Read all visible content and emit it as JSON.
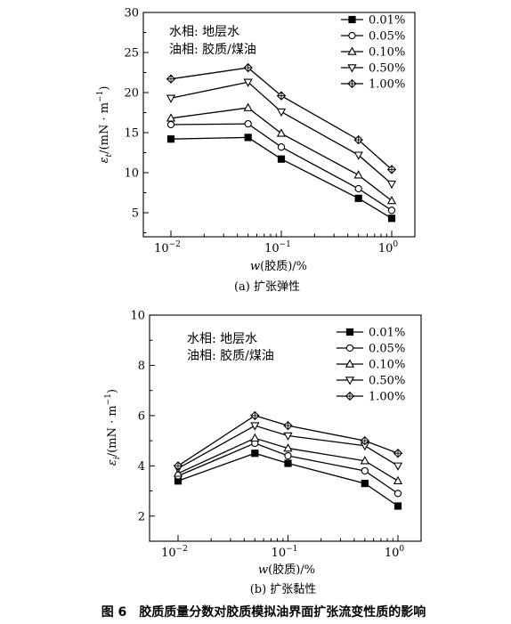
{
  "figure_caption": "图 6　胶质质量分数对胶质模拟油界面扩张流变性质的影响",
  "chart_data": [
    {
      "type": "line",
      "subcaption": "(a) 扩张弹性",
      "xlabel": "w(胶质)/%",
      "ylabel": "ε_t/(mN·m⁻¹)",
      "x_scale": "log",
      "x": [
        0.01,
        0.05,
        0.1,
        0.5,
        1.0
      ],
      "xticks": [
        {
          "value": 0.01,
          "base": "10",
          "exp": "−2"
        },
        {
          "value": 0.1,
          "base": "10",
          "exp": "−1"
        },
        {
          "value": 1,
          "base": "10",
          "exp": "0"
        }
      ],
      "ylim": [
        2,
        30
      ],
      "yticks": [
        "5",
        "10",
        "15",
        "20",
        "25",
        "30"
      ],
      "grid": false,
      "legend_position": "top-right",
      "notes": [
        "水相: 地层水",
        "油相: 胶质/煤油"
      ],
      "series": [
        {
          "name": "0.01%",
          "marker": "square-filled",
          "values": [
            14.2,
            14.4,
            11.7,
            6.8,
            4.3
          ]
        },
        {
          "name": "0.05%",
          "marker": "circle-open",
          "values": [
            16.0,
            16.1,
            13.2,
            8.0,
            5.3
          ]
        },
        {
          "name": "0.10%",
          "marker": "triangle-up-open",
          "values": [
            16.8,
            18.1,
            14.9,
            9.7,
            6.5
          ]
        },
        {
          "name": "0.50%",
          "marker": "triangle-down-open",
          "values": [
            19.3,
            21.3,
            17.6,
            12.2,
            8.6
          ]
        },
        {
          "name": "1.00%",
          "marker": "diamond-cross",
          "values": [
            21.7,
            23.1,
            19.6,
            14.1,
            10.4
          ]
        }
      ]
    },
    {
      "type": "line",
      "subcaption": "(b) 扩张黏性",
      "xlabel": "w(胶质)/%",
      "ylabel": "ε_i/(mN·m⁻¹)",
      "x_scale": "log",
      "x": [
        0.01,
        0.05,
        0.1,
        0.5,
        1.0
      ],
      "xticks": [
        {
          "value": 0.01,
          "base": "10",
          "exp": "−2"
        },
        {
          "value": 0.1,
          "base": "10",
          "exp": "−1"
        },
        {
          "value": 1,
          "base": "10",
          "exp": "0"
        }
      ],
      "ylim": [
        1,
        10
      ],
      "yticks": [
        "2",
        "4",
        "6",
        "8",
        "10"
      ],
      "grid": false,
      "legend_position": "top-right",
      "notes": [
        "水相: 地层水",
        "油相: 胶质/煤油"
      ],
      "series": [
        {
          "name": "0.01%",
          "marker": "square-filled",
          "values": [
            3.4,
            4.5,
            4.1,
            3.3,
            2.4
          ]
        },
        {
          "name": "0.05%",
          "marker": "circle-open",
          "values": [
            3.6,
            4.9,
            4.4,
            3.8,
            2.9
          ]
        },
        {
          "name": "0.10%",
          "marker": "triangle-up-open",
          "values": [
            3.7,
            5.1,
            4.7,
            4.2,
            3.4
          ]
        },
        {
          "name": "0.50%",
          "marker": "triangle-down-open",
          "values": [
            3.9,
            5.6,
            5.2,
            4.8,
            4.0
          ]
        },
        {
          "name": "1.00%",
          "marker": "diamond-cross",
          "values": [
            4.0,
            6.0,
            5.6,
            5.0,
            4.5
          ]
        }
      ]
    }
  ]
}
